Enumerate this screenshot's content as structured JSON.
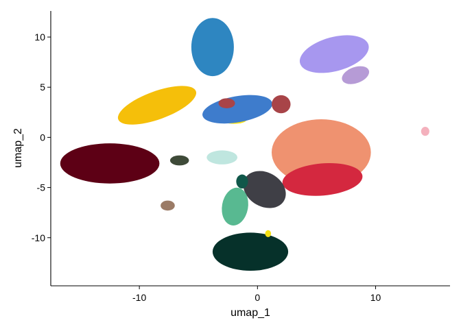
{
  "chart_data": {
    "type": "scatter",
    "title": "",
    "xlabel": "umap_1",
    "ylabel": "umap_2",
    "xlim": [
      -17.5,
      16.3
    ],
    "ylim": [
      -14.8,
      12.6
    ],
    "xticks": [
      -10,
      0,
      10
    ],
    "yticks": [
      -10,
      -5,
      0,
      5,
      10
    ],
    "grid": false,
    "legend": "none",
    "clusters": [
      {
        "color": "#2e86c1",
        "center": [
          -3.8,
          9.0
        ],
        "spread": [
          1.8,
          2.9
        ],
        "shape": "ellipse",
        "rotate": 0
      },
      {
        "color": "#a797ef",
        "center": [
          6.5,
          8.3
        ],
        "spread": [
          3.0,
          1.7
        ],
        "shape": "ellipse",
        "rotate": -15
      },
      {
        "color": "#b69bd6",
        "center": [
          8.3,
          6.2
        ],
        "spread": [
          1.2,
          0.8
        ],
        "shape": "ellipse",
        "rotate": -20
      },
      {
        "color": "#f5bf0a",
        "center": [
          -8.5,
          3.2
        ],
        "spread": [
          3.5,
          1.4
        ],
        "shape": "ellipse",
        "rotate": -20
      },
      {
        "color": "#f5e014",
        "center": [
          -2.0,
          1.8
        ],
        "spread": [
          1.1,
          0.45
        ],
        "shape": "ellipse",
        "rotate": 0
      },
      {
        "color": "#3e7ccc",
        "center": [
          -1.7,
          2.8
        ],
        "spread": [
          3.0,
          1.3
        ],
        "shape": "ellipse",
        "rotate": -10
      },
      {
        "color": "#a84448",
        "center": [
          2.0,
          3.3
        ],
        "spread": [
          0.8,
          0.9
        ],
        "shape": "ellipse",
        "rotate": 0
      },
      {
        "color": "#a84448",
        "center": [
          -2.6,
          3.4
        ],
        "spread": [
          0.7,
          0.5
        ],
        "shape": "ellipse",
        "rotate": 0
      },
      {
        "color": "#ef9270",
        "center": [
          5.4,
          -1.5
        ],
        "spread": [
          4.2,
          3.3
        ],
        "shape": "ellipse",
        "rotate": 0
      },
      {
        "color": "#d4283f",
        "center": [
          5.5,
          -4.2
        ],
        "spread": [
          3.4,
          1.6
        ],
        "shape": "ellipse",
        "rotate": -5
      },
      {
        "color": "#5d0015",
        "center": [
          -12.5,
          -2.6
        ],
        "spread": [
          4.2,
          2.0
        ],
        "shape": "ellipse",
        "rotate": 0
      },
      {
        "color": "#3e4a38",
        "center": [
          -6.6,
          -2.3
        ],
        "spread": [
          0.8,
          0.5
        ],
        "shape": "ellipse",
        "rotate": 0
      },
      {
        "color": "#bfe6df",
        "center": [
          -3.0,
          -2.0
        ],
        "spread": [
          1.3,
          0.7
        ],
        "shape": "ellipse",
        "rotate": 0
      },
      {
        "color": "#9b7b66",
        "center": [
          -7.6,
          -6.8
        ],
        "spread": [
          0.6,
          0.5
        ],
        "shape": "ellipse",
        "rotate": 0
      },
      {
        "color": "#3f3f46",
        "center": [
          0.6,
          -5.2
        ],
        "spread": [
          1.9,
          1.7
        ],
        "shape": "ellipse",
        "rotate": 30
      },
      {
        "color": "#58b991",
        "center": [
          -1.9,
          -6.9
        ],
        "spread": [
          1.1,
          1.9
        ],
        "shape": "ellipse",
        "rotate": 10
      },
      {
        "color": "#06312a",
        "center": [
          -0.6,
          -11.4
        ],
        "spread": [
          3.2,
          1.9
        ],
        "shape": "ellipse",
        "rotate": 0
      },
      {
        "color": "#10574a",
        "center": [
          -1.3,
          -4.4
        ],
        "spread": [
          0.5,
          0.7
        ],
        "shape": "ellipse",
        "rotate": 0
      },
      {
        "color": "#f4b1bd",
        "center": [
          14.2,
          0.6
        ],
        "spread": [
          0.35,
          0.45
        ],
        "shape": "ellipse",
        "rotate": 0
      },
      {
        "color": "#f5e014",
        "center": [
          0.9,
          -9.6
        ],
        "spread": [
          0.25,
          0.35
        ],
        "shape": "ellipse",
        "rotate": 0
      }
    ]
  }
}
